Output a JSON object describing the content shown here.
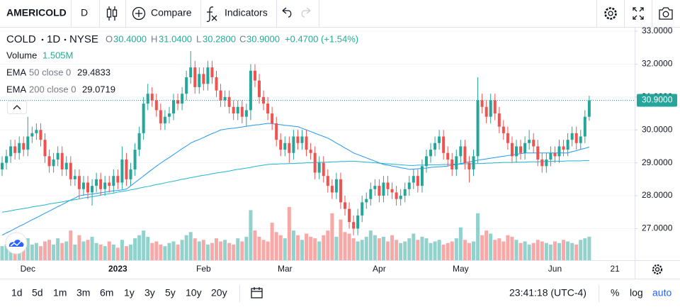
{
  "toolbar": {
    "symbol": "AMERICOLD",
    "interval": "D",
    "compare": "Compare",
    "indicators": "Indicators"
  },
  "legend": {
    "title": "COLD",
    "interval": "1D",
    "exchange": "NYSE",
    "o_label": "O",
    "o": "30.4000",
    "h_label": "H",
    "h": "31.0400",
    "l_label": "L",
    "l": "30.2800",
    "c_label": "C",
    "c": "30.9000",
    "change": "+0.4700 (+1.54%)"
  },
  "chart_data": {
    "type": "candlestick",
    "up_color": "#26a69a",
    "down_color": "#ef5350",
    "grid": true,
    "ylim": [
      26.04,
      33.13
    ],
    "yticks": [
      {
        "value": 27,
        "label": "27.0000"
      },
      {
        "value": 28,
        "label": "28.0000"
      },
      {
        "value": 29,
        "label": "29.0000"
      },
      {
        "value": 30,
        "label": "30.0000"
      },
      {
        "value": 31,
        "label": "31.0000"
      },
      {
        "value": 32,
        "label": "32.0000"
      },
      {
        "value": 33,
        "label": "33.0000"
      }
    ],
    "last_price": {
      "value": 30.9,
      "label": "30.9000"
    },
    "categories": [
      null,
      null,
      null,
      null,
      null,
      null,
      "Dec",
      null,
      null,
      null,
      null,
      null,
      null,
      null,
      null,
      null,
      null,
      null,
      null,
      null,
      null,
      null,
      null,
      null,
      null,
      null,
      null,
      "2023",
      null,
      null,
      null,
      null,
      null,
      null,
      null,
      null,
      null,
      null,
      null,
      null,
      null,
      null,
      null,
      null,
      null,
      null,
      null,
      "Feb",
      null,
      null,
      null,
      null,
      null,
      null,
      null,
      null,
      null,
      null,
      null,
      null,
      null,
      null,
      null,
      null,
      null,
      null,
      "Mar",
      null,
      null,
      null,
      null,
      null,
      null,
      null,
      null,
      null,
      null,
      null,
      null,
      null,
      null,
      null,
      null,
      null,
      null,
      null,
      null,
      null,
      "Apr",
      null,
      null,
      null,
      null,
      null,
      null,
      null,
      null,
      null,
      null,
      null,
      null,
      null,
      null,
      null,
      null,
      null,
      null,
      "May",
      null,
      null,
      null,
      null,
      null,
      null,
      null,
      null,
      null,
      null,
      null,
      null,
      null,
      null,
      null,
      null,
      null,
      null,
      null,
      null,
      null,
      "Jun",
      null,
      null,
      null,
      null,
      null,
      null,
      null,
      null,
      null,
      null,
      null,
      null,
      null,
      "21"
    ],
    "open": [
      28.8,
      29.0,
      29.2,
      29.5,
      29.3,
      29.6,
      29.4,
      29.8,
      29.9,
      30.0,
      29.7,
      29.2,
      28.9,
      29.1,
      29.3,
      28.8,
      29.0,
      28.5,
      28.6,
      28.2,
      28.4,
      28.1,
      28.3,
      28.5,
      28.2,
      28.4,
      28.3,
      28.6,
      28.4,
      29.1,
      28.5,
      28.8,
      29.4,
      29.9,
      30.8,
      31.1,
      30.9,
      30.6,
      30.2,
      30.4,
      30.5,
      30.9,
      30.8,
      31.1,
      31.6,
      31.9,
      31.3,
      31.7,
      31.4,
      31.9,
      31.6,
      31.2,
      30.9,
      31.0,
      30.7,
      30.5,
      30.7,
      30.4,
      30.6,
      31.8,
      31.5,
      31.0,
      30.8,
      30.5,
      30.2,
      29.7,
      29.4,
      29.6,
      29.3,
      29.8,
      29.6,
      29.8,
      29.4,
      29.3,
      28.7,
      29.0,
      28.6,
      28.3,
      28.1,
      28.5,
      27.8,
      27.6,
      27.2,
      27.0,
      27.4,
      27.8,
      27.9,
      28.2,
      28.3,
      28.0,
      28.4,
      28.2,
      28.1,
      27.9,
      28.0,
      28.2,
      28.4,
      28.6,
      28.3,
      28.9,
      29.2,
      29.4,
      29.6,
      29.8,
      29.3,
      29.1,
      28.8,
      29.2,
      29.5,
      29.0,
      28.8,
      29.2,
      30.9,
      30.7,
      30.4,
      30.9,
      30.5,
      30.1,
      29.9,
      29.6,
      29.2,
      29.5,
      29.3,
      29.6,
      29.7,
      29.5,
      29.1,
      28.9,
      29.1,
      29.3,
      29.2,
      29.5,
      29.4,
      29.7,
      29.9,
      29.6,
      29.8,
      30.4,
      null,
      null,
      null,
      null,
      null,
      null
    ],
    "high": [
      29.2,
      29.4,
      29.7,
      29.7,
      29.8,
      29.8,
      30.4,
      30.1,
      30.2,
      30.2,
      29.9,
      29.4,
      29.3,
      29.5,
      29.5,
      29.2,
      29.2,
      28.8,
      28.8,
      28.6,
      28.6,
      28.5,
      28.7,
      28.7,
      28.6,
      28.6,
      28.8,
      28.8,
      29.5,
      29.3,
      29.0,
      29.6,
      30.1,
      31.0,
      31.4,
      31.3,
      31.1,
      30.8,
      30.6,
      30.7,
      31.1,
      31.1,
      31.3,
      31.8,
      32.4,
      32.1,
      31.9,
      31.9,
      32.1,
      32.1,
      31.8,
      31.4,
      31.2,
      31.2,
      30.9,
      30.9,
      30.9,
      30.8,
      32.0,
      32.0,
      31.7,
      31.2,
      31.0,
      30.7,
      30.4,
      29.9,
      29.8,
      29.8,
      30.0,
      30.0,
      30.0,
      30.0,
      29.6,
      29.5,
      29.2,
      29.2,
      28.8,
      28.5,
      28.7,
      28.7,
      28.0,
      27.8,
      27.4,
      27.6,
      28.0,
      28.1,
      28.4,
      28.5,
      28.5,
      28.6,
      28.6,
      28.4,
      28.3,
      28.2,
      28.4,
      28.6,
      28.8,
      28.8,
      29.1,
      29.4,
      29.6,
      29.8,
      30.0,
      30.0,
      29.5,
      29.3,
      29.4,
      29.7,
      29.7,
      29.2,
      29.4,
      31.6,
      31.1,
      30.9,
      31.1,
      31.1,
      30.7,
      30.3,
      30.1,
      29.8,
      29.7,
      29.7,
      29.8,
      30.0,
      29.9,
      29.7,
      29.3,
      29.3,
      29.5,
      29.5,
      29.7,
      29.7,
      29.9,
      30.1,
      30.1,
      30.0,
      30.6,
      31.04,
      null,
      null,
      null,
      null,
      null,
      null
    ],
    "low": [
      28.6,
      28.8,
      29.0,
      29.1,
      29.1,
      29.2,
      29.2,
      29.6,
      29.7,
      29.5,
      29.0,
      28.7,
      28.7,
      28.9,
      28.6,
      28.6,
      28.3,
      28.3,
      27.9,
      28.0,
      27.9,
      27.7,
      28.1,
      28.0,
      28.0,
      28.1,
      28.1,
      28.2,
      28.2,
      28.3,
      28.3,
      28.6,
      29.2,
      29.7,
      30.6,
      30.7,
      30.4,
      30.0,
      30.0,
      30.2,
      30.3,
      30.6,
      30.6,
      30.9,
      31.4,
      31.1,
      31.1,
      31.2,
      31.2,
      31.4,
      31.0,
      30.7,
      30.7,
      30.5,
      30.3,
      30.3,
      30.2,
      30.1,
      30.3,
      31.3,
      30.8,
      30.6,
      30.3,
      30.0,
      29.5,
      29.2,
      29.2,
      29.0,
      29.1,
      29.4,
      29.4,
      29.2,
      29.1,
      28.5,
      28.5,
      28.4,
      28.1,
      27.9,
      27.9,
      27.6,
      27.4,
      27.0,
      26.8,
      26.8,
      27.2,
      27.6,
      27.7,
      28.0,
      27.8,
      27.8,
      28.0,
      27.9,
      27.7,
      27.7,
      27.8,
      28.0,
      28.2,
      28.1,
      28.1,
      28.7,
      29.0,
      29.2,
      29.4,
      29.1,
      28.9,
      28.6,
      28.6,
      29.0,
      28.8,
      28.4,
      28.6,
      29.0,
      30.5,
      30.2,
      30.2,
      30.3,
      29.9,
      29.7,
      29.4,
      29.0,
      29.0,
      29.1,
      29.1,
      29.4,
      29.3,
      28.9,
      28.7,
      28.7,
      28.9,
      29.0,
      29.0,
      29.2,
      29.2,
      29.5,
      29.4,
      29.4,
      29.6,
      30.28,
      null,
      null,
      null,
      null,
      null,
      null
    ],
    "close": [
      29.0,
      29.2,
      29.5,
      29.3,
      29.6,
      29.4,
      29.8,
      29.9,
      30.0,
      29.7,
      29.2,
      28.9,
      29.1,
      29.3,
      28.8,
      29.0,
      28.5,
      28.6,
      28.2,
      28.4,
      28.1,
      28.3,
      28.5,
      28.2,
      28.4,
      28.3,
      28.6,
      28.4,
      29.1,
      28.5,
      28.8,
      29.4,
      29.9,
      30.8,
      31.1,
      30.9,
      30.6,
      30.2,
      30.4,
      30.5,
      30.9,
      30.8,
      31.1,
      31.6,
      31.9,
      31.3,
      31.7,
      31.4,
      31.9,
      31.6,
      31.2,
      30.9,
      31.0,
      30.7,
      30.5,
      30.7,
      30.4,
      30.6,
      31.8,
      31.5,
      31.0,
      30.8,
      30.5,
      30.2,
      29.7,
      29.4,
      29.6,
      29.3,
      29.8,
      29.6,
      29.8,
      29.4,
      29.3,
      28.7,
      29.0,
      28.6,
      28.3,
      28.1,
      28.5,
      27.8,
      27.6,
      27.2,
      27.0,
      27.4,
      27.8,
      27.9,
      28.2,
      28.3,
      28.0,
      28.4,
      28.2,
      28.1,
      27.9,
      28.0,
      28.2,
      28.4,
      28.6,
      28.3,
      28.9,
      29.2,
      29.4,
      29.6,
      29.8,
      29.3,
      29.1,
      28.8,
      29.2,
      29.5,
      29.0,
      28.8,
      29.2,
      30.9,
      30.7,
      30.4,
      30.9,
      30.5,
      30.1,
      29.9,
      29.6,
      29.2,
      29.5,
      29.3,
      29.6,
      29.7,
      29.5,
      29.1,
      28.9,
      29.1,
      29.3,
      29.2,
      29.5,
      29.4,
      29.7,
      29.9,
      29.6,
      29.8,
      30.4,
      30.9,
      null,
      null,
      null,
      null,
      null,
      null
    ],
    "volume": {
      "name": "Volume",
      "last_label": "1.505M",
      "values": [
        0.9,
        1.0,
        0.8,
        1.1,
        0.9,
        1.2,
        1.4,
        1.0,
        1.1,
        0.9,
        1.2,
        1.3,
        1.0,
        1.4,
        1.1,
        1.2,
        1.9,
        1.0,
        1.6,
        1.2,
        1.3,
        1.5,
        1.1,
        1.0,
        0.9,
        1.2,
        1.0,
        0.8,
        1.3,
        0.9,
        1.0,
        1.4,
        1.6,
        1.9,
        1.5,
        1.1,
        1.2,
        1.0,
        0.9,
        1.1,
        1.2,
        1.0,
        1.3,
        1.6,
        1.8,
        1.4,
        1.2,
        1.3,
        1.0,
        1.1,
        1.4,
        1.2,
        1.3,
        1.1,
        1.0,
        1.4,
        1.2,
        1.5,
        3.2,
        1.9,
        1.5,
        1.3,
        1.2,
        2.4,
        1.8,
        1.6,
        1.4,
        3.4,
        1.9,
        1.6,
        1.3,
        1.7,
        1.5,
        1.4,
        1.2,
        1.6,
        1.9,
        3.0,
        1.5,
        2.6,
        1.8,
        1.7,
        1.4,
        1.2,
        1.3,
        1.5,
        1.9,
        1.6,
        1.4,
        1.5,
        1.2,
        1.6,
        1.3,
        1.1,
        1.2,
        1.4,
        1.7,
        1.3,
        1.5,
        1.4,
        1.1,
        1.2,
        1.3,
        1.0,
        1.1,
        1.2,
        1.4,
        2.1,
        1.3,
        1.1,
        1.2,
        3.0,
        1.6,
        1.9,
        1.7,
        1.3,
        1.4,
        1.2,
        1.6,
        1.5,
        1.3,
        1.1,
        1.2,
        1.0,
        1.1,
        1.3,
        1.2,
        1.1,
        1.0,
        1.2,
        1.1,
        1.3,
        1.2,
        1.1,
        1.0,
        1.3,
        1.4,
        1.505,
        null,
        null,
        null,
        null,
        null,
        null
      ]
    },
    "series": [
      {
        "name": "EMA",
        "params": "50 close 0",
        "last_label": "29.4833",
        "color": "#2196f3",
        "values": [
          26.8,
          26.87,
          26.93,
          27.0,
          27.07,
          27.13,
          27.2,
          27.27,
          27.33,
          27.4,
          27.47,
          27.53,
          27.6,
          27.67,
          27.73,
          27.8,
          27.87,
          27.93,
          28.0,
          28.02,
          28.04,
          28.05,
          28.07,
          28.09,
          28.11,
          28.13,
          28.15,
          28.16,
          28.18,
          28.2,
          28.3,
          28.4,
          28.5,
          28.6,
          28.7,
          28.8,
          28.9,
          28.99,
          29.08,
          29.16,
          29.25,
          29.34,
          29.43,
          29.51,
          29.6,
          29.66,
          29.71,
          29.77,
          29.83,
          29.89,
          29.94,
          30.0,
          30.02,
          30.04,
          30.05,
          30.07,
          30.09,
          30.11,
          30.13,
          30.15,
          30.16,
          30.18,
          30.2,
          30.19,
          30.17,
          30.16,
          30.14,
          30.13,
          30.11,
          30.1,
          30.05,
          30.0,
          29.95,
          29.9,
          29.85,
          29.8,
          29.75,
          29.68,
          29.6,
          29.53,
          29.45,
          29.38,
          29.3,
          29.25,
          29.2,
          29.15,
          29.1,
          29.05,
          29.0,
          28.95,
          28.93,
          28.9,
          28.88,
          28.85,
          28.83,
          28.8,
          28.81,
          28.82,
          28.83,
          28.84,
          28.86,
          28.87,
          28.88,
          28.89,
          28.9,
          28.93,
          28.95,
          28.98,
          29.0,
          29.03,
          29.05,
          29.08,
          29.1,
          29.12,
          29.14,
          29.16,
          29.18,
          29.2,
          29.22,
          29.24,
          29.26,
          29.28,
          29.3,
          29.3,
          29.3,
          29.3,
          29.3,
          29.3,
          29.3,
          29.3,
          29.3,
          29.3,
          29.3,
          29.34,
          29.37,
          29.41,
          29.44,
          29.48,
          null,
          null,
          null,
          null,
          null,
          null
        ]
      },
      {
        "name": "EMA",
        "params": "200 close 0",
        "last_label": "29.0719",
        "color": "#1fb5cc",
        "values": [
          27.5,
          27.52,
          27.54,
          27.57,
          27.59,
          27.61,
          27.63,
          27.66,
          27.68,
          27.7,
          27.72,
          27.75,
          27.77,
          27.79,
          27.81,
          27.84,
          27.86,
          27.88,
          27.9,
          27.93,
          27.95,
          27.97,
          27.99,
          28.02,
          28.04,
          28.06,
          28.08,
          28.11,
          28.13,
          28.15,
          28.18,
          28.2,
          28.23,
          28.26,
          28.28,
          28.31,
          28.34,
          28.36,
          28.39,
          28.42,
          28.44,
          28.47,
          28.5,
          28.52,
          28.55,
          28.57,
          28.6,
          28.62,
          28.64,
          28.67,
          28.69,
          28.71,
          28.73,
          28.75,
          28.78,
          28.8,
          28.82,
          28.84,
          28.86,
          28.89,
          28.91,
          28.93,
          28.95,
          28.96,
          28.96,
          28.97,
          28.97,
          28.98,
          28.98,
          28.99,
          28.99,
          29.0,
          29.0,
          29.01,
          29.01,
          29.02,
          29.02,
          29.03,
          29.03,
          29.04,
          29.04,
          29.05,
          29.05,
          29.04,
          29.03,
          29.02,
          29.01,
          29.0,
          28.99,
          28.98,
          28.97,
          28.96,
          28.95,
          28.94,
          28.93,
          28.92,
          28.92,
          28.93,
          28.93,
          28.93,
          28.94,
          28.94,
          28.94,
          28.95,
          28.95,
          28.96,
          28.96,
          28.96,
          28.97,
          28.97,
          28.97,
          28.98,
          28.98,
          28.99,
          28.99,
          29.0,
          29.0,
          29.01,
          29.01,
          29.01,
          29.02,
          29.02,
          29.02,
          29.03,
          29.03,
          29.03,
          29.04,
          29.04,
          29.04,
          29.05,
          29.05,
          29.05,
          29.06,
          29.06,
          29.06,
          29.06,
          29.07,
          29.07,
          null,
          null,
          null,
          null,
          null,
          null
        ]
      }
    ]
  },
  "bottom": {
    "ranges": [
      "1d",
      "5d",
      "1m",
      "3m",
      "6m",
      "1y",
      "3y",
      "5y",
      "10y",
      "20y"
    ],
    "clock": "23:41:18 (UTC-4)",
    "scale_options": [
      "%",
      "log",
      "auto"
    ]
  }
}
